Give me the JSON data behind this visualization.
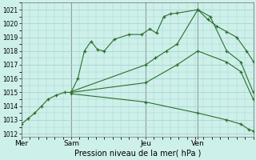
{
  "xlabel": "Pression niveau de la mer( hPa )",
  "background_color": "#cef0ea",
  "grid_color": "#a0d0cc",
  "line_color": "#2d6e2d",
  "vline_color": "#808080",
  "ylim": [
    1011.8,
    1021.5
  ],
  "yticks": [
    1012,
    1013,
    1014,
    1015,
    1016,
    1017,
    1018,
    1019,
    1020,
    1021
  ],
  "xlim": [
    0,
    280
  ],
  "day_positions": [
    0,
    60,
    150,
    213
  ],
  "day_labels": [
    "Mer",
    "Sam",
    "Jeu",
    "Ven"
  ],
  "series1_x": [
    0,
    8,
    16,
    24,
    32,
    42,
    52,
    60,
    68,
    76,
    84,
    92,
    100,
    112,
    130,
    145,
    155,
    163,
    172,
    180,
    188,
    213,
    225,
    236,
    248,
    260,
    272,
    280
  ],
  "series1_y": [
    1012.7,
    1013.1,
    1013.5,
    1014.0,
    1014.5,
    1014.8,
    1015.0,
    1015.0,
    1016.0,
    1018.0,
    1018.7,
    1018.1,
    1018.0,
    1018.85,
    1019.2,
    1019.2,
    1019.6,
    1019.3,
    1020.5,
    1020.7,
    1020.75,
    1021.0,
    1020.3,
    1019.8,
    1019.4,
    1019.0,
    1018.0,
    1017.25
  ],
  "series2_x": [
    60,
    150,
    162,
    175,
    188,
    213,
    228,
    248,
    265,
    280
  ],
  "series2_y": [
    1015.05,
    1017.0,
    1017.5,
    1018.0,
    1018.5,
    1021.0,
    1020.5,
    1018.0,
    1017.2,
    1015.0
  ],
  "series3_x": [
    60,
    150,
    188,
    213,
    248,
    265,
    280
  ],
  "series3_y": [
    1015.0,
    1015.7,
    1017.0,
    1018.0,
    1017.2,
    1016.5,
    1014.5
  ],
  "series4_x": [
    60,
    150,
    213,
    248,
    265,
    275,
    280
  ],
  "series4_y": [
    1014.9,
    1014.3,
    1013.5,
    1013.0,
    1012.7,
    1012.3,
    1012.2
  ]
}
